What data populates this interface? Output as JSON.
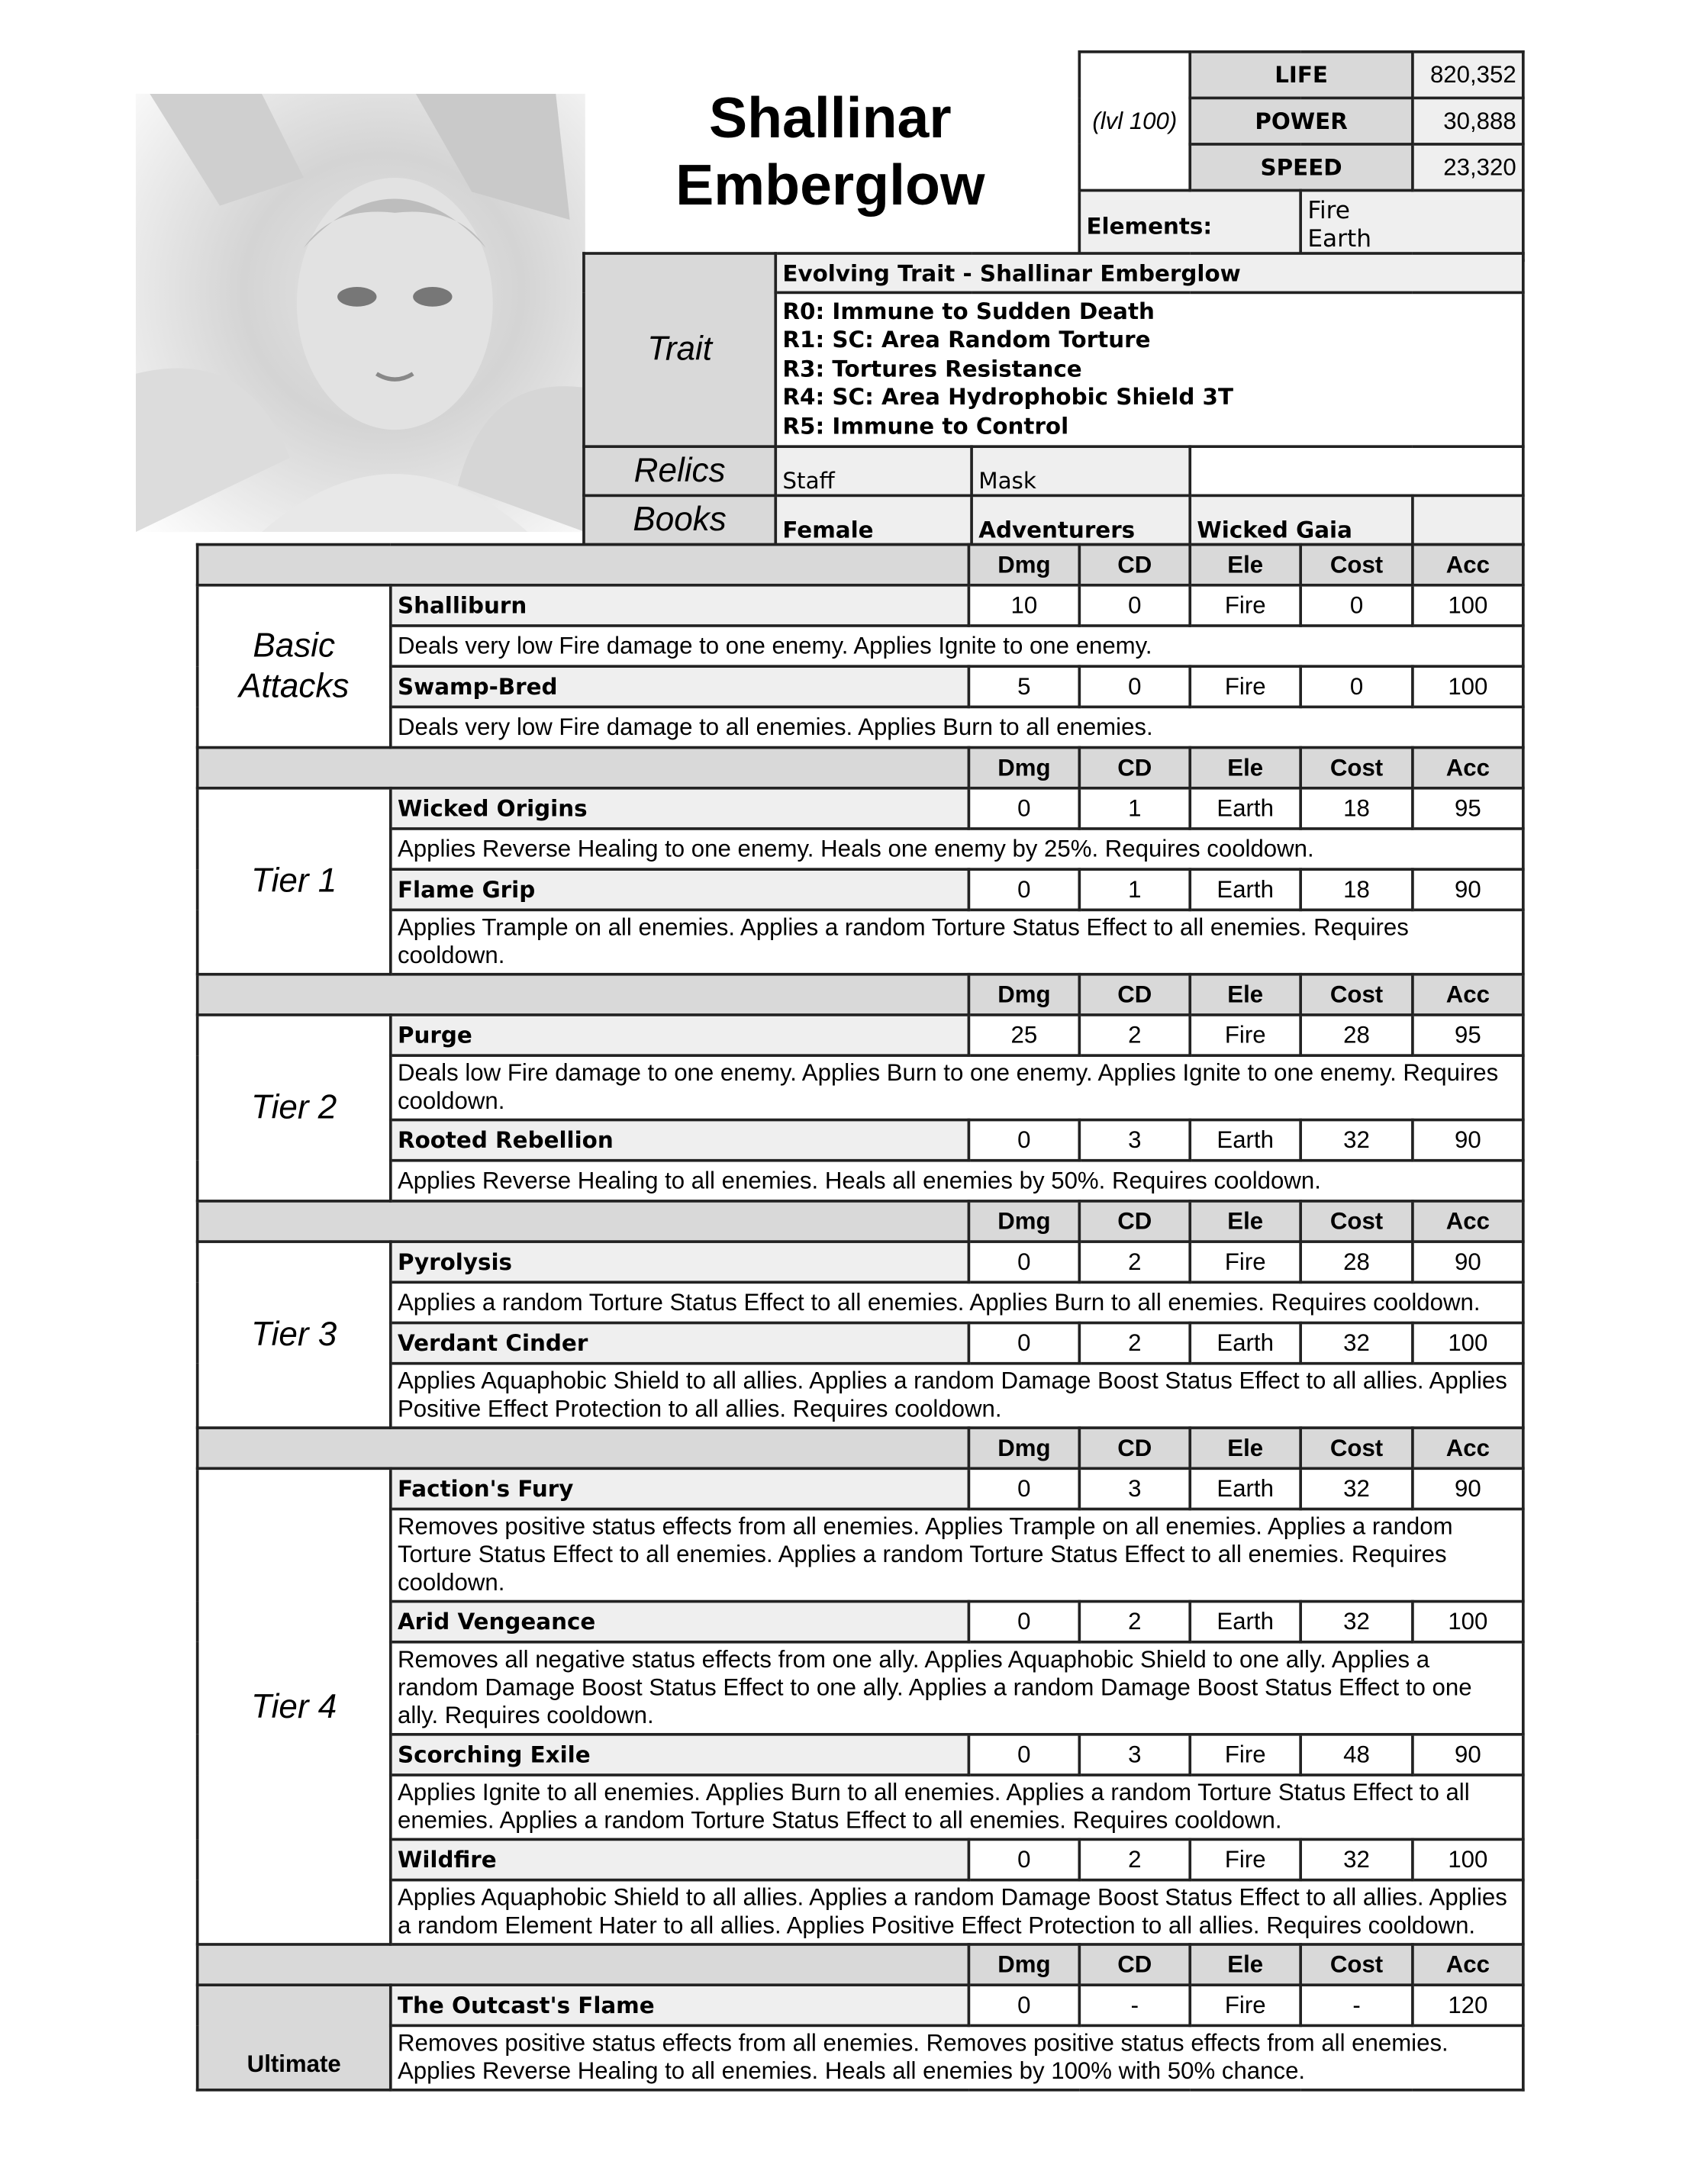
{
  "title": "Shallinar Emberglow",
  "stats": {
    "level": "(lvl 100)",
    "rows": [
      {
        "label": "LIFE",
        "value": "820,352"
      },
      {
        "label": "POWER",
        "value": "30,888"
      },
      {
        "label": "SPEED",
        "value": "23,320"
      }
    ],
    "elements_label": "Elements:",
    "elements": [
      "Fire",
      "Earth"
    ]
  },
  "trait": {
    "label": "Trait",
    "header": "Evolving Trait - Shallinar Emberglow",
    "lines": [
      "R0: Immune to Sudden Death",
      "R1: SC: Area Random Torture",
      "R3: Tortures Resistance",
      "R4: SC: Area Hydrophobic Shield 3T",
      "R5: Immune to Control"
    ]
  },
  "relics": {
    "label": "Relics",
    "items": [
      "Staff",
      "Mask",
      ""
    ]
  },
  "books": {
    "label": "Books",
    "items": [
      "Female",
      "Adventurers",
      "Wicked Gaia",
      ""
    ]
  },
  "columns": [
    "Dmg",
    "CD",
    "Ele",
    "Cost",
    "Acc"
  ],
  "sections": [
    {
      "label": "Basic Attacks",
      "skills": [
        {
          "name": "Shalliburn",
          "dmg": "10",
          "cd": "0",
          "ele": "Fire",
          "cost": "0",
          "acc": "100",
          "desc": "Deals very low Fire damage to one enemy. Applies Ignite to one enemy."
        },
        {
          "name": "Swamp-Bred",
          "dmg": "5",
          "cd": "0",
          "ele": "Fire",
          "cost": "0",
          "acc": "100",
          "desc": "Deals very low Fire damage to all enemies. Applies Burn to all enemies."
        }
      ]
    },
    {
      "label": "Tier 1",
      "skills": [
        {
          "name": "Wicked Origins",
          "dmg": "0",
          "cd": "1",
          "ele": "Earth",
          "cost": "18",
          "acc": "95",
          "desc": "Applies Reverse Healing to one enemy. Heals one enemy by 25%. Requires cooldown."
        },
        {
          "name": "Flame Grip",
          "dmg": "0",
          "cd": "1",
          "ele": "Earth",
          "cost": "18",
          "acc": "90",
          "desc": "Applies Trample on all enemies. Applies a random Torture Status Effect to all enemies. Requires cooldown."
        }
      ]
    },
    {
      "label": "Tier 2",
      "skills": [
        {
          "name": "Purge",
          "dmg": "25",
          "cd": "2",
          "ele": "Fire",
          "cost": "28",
          "acc": "95",
          "desc": "Deals low Fire damage to one enemy. Applies Burn to one enemy. Applies Ignite to one enemy. Requires cooldown."
        },
        {
          "name": "Rooted Rebellion",
          "dmg": "0",
          "cd": "3",
          "ele": "Earth",
          "cost": "32",
          "acc": "90",
          "desc": "Applies Reverse Healing to all enemies. Heals all enemies by 50%. Requires cooldown."
        }
      ]
    },
    {
      "label": "Tier 3",
      "skills": [
        {
          "name": "Pyrolysis",
          "dmg": "0",
          "cd": "2",
          "ele": "Fire",
          "cost": "28",
          "acc": "90",
          "desc": "Applies a random Torture Status Effect to all enemies. Applies Burn to all enemies. Requires cooldown."
        },
        {
          "name": "Verdant Cinder",
          "dmg": "0",
          "cd": "2",
          "ele": "Earth",
          "cost": "32",
          "acc": "100",
          "desc": "Applies Aquaphobic Shield to all allies. Applies a random Damage Boost Status Effect to all allies. Applies Positive Effect Protection to all allies. Requires cooldown."
        }
      ]
    },
    {
      "label": "Tier 4",
      "skills": [
        {
          "name": "Faction's Fury",
          "dmg": "0",
          "cd": "3",
          "ele": "Earth",
          "cost": "32",
          "acc": "90",
          "desc": "Removes positive status effects from all enemies. Applies Trample on all enemies. Applies a random Torture Status Effect to all enemies. Applies a random Torture Status Effect to all enemies. Requires cooldown."
        },
        {
          "name": "Arid Vengeance",
          "dmg": "0",
          "cd": "2",
          "ele": "Earth",
          "cost": "32",
          "acc": "100",
          "desc": "Removes all negative status effects from one ally. Applies Aquaphobic Shield to one ally. Applies a random Damage Boost Status Effect to one ally. Applies a random Damage Boost Status Effect to one ally. Requires cooldown."
        },
        {
          "name": "Scorching Exile",
          "dmg": "0",
          "cd": "3",
          "ele": "Fire",
          "cost": "48",
          "acc": "90",
          "desc": "Applies Ignite to all enemies. Applies Burn to all enemies. Applies a random Torture Status Effect to all enemies. Applies a random Torture Status Effect to all enemies. Requires cooldown."
        },
        {
          "name": "Wildfire",
          "dmg": "0",
          "cd": "2",
          "ele": "Fire",
          "cost": "32",
          "acc": "100",
          "desc": "Applies Aquaphobic Shield to all allies. Applies a random Damage Boost Status Effect to all allies. Applies a random Element Hater to all allies. Applies Positive Effect Protection to all allies. Requires cooldown."
        }
      ]
    },
    {
      "label": "Ultimate",
      "ultimate": true,
      "skills": [
        {
          "name": "The Outcast's Flame",
          "dmg": "0",
          "cd": "-",
          "ele": "Fire",
          "cost": "-",
          "acc": "120",
          "desc": "Removes positive status effects from all enemies. Removes positive status effects from all enemies. Applies Reverse Healing to all enemies. Heals all enemies by 100% with 50% chance."
        }
      ]
    }
  ]
}
